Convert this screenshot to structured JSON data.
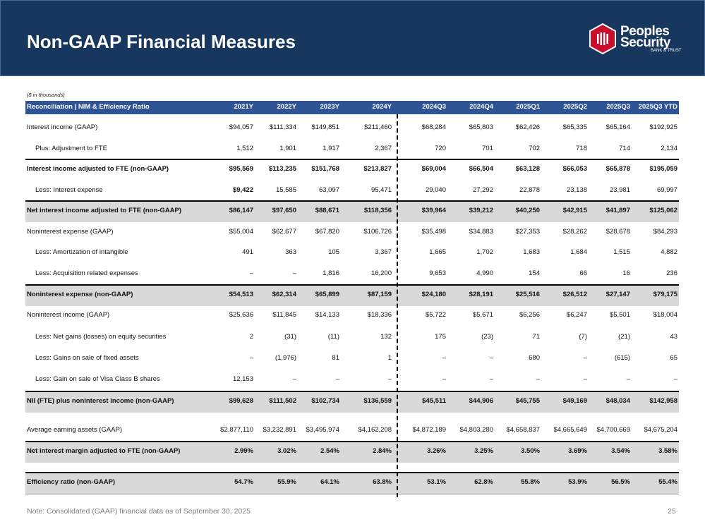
{
  "header": {
    "title": "Non-GAAP Financial Measures",
    "logo": {
      "line1": "Peoples",
      "line2": "Security",
      "line3": "BANK & TRUST"
    }
  },
  "units_note": "($ in thousands)",
  "table": {
    "columns": [
      "Reconciliation | NIM & Efficiency Ratio",
      "2021Y",
      "2022Y",
      "2023Y",
      "2024Y",
      "2024Q3",
      "2024Q4",
      "2025Q1",
      "2025Q2",
      "2025Q3",
      "2025Q3 YTD"
    ],
    "rows": [
      {
        "label": "Interest income (GAAP)",
        "cells": [
          "$94,057",
          "$111,334",
          "$149,851",
          "$211,460",
          "$68,284",
          "$65,803",
          "$62,426",
          "$65,335",
          "$65,164",
          "$192,925"
        ]
      },
      {
        "label": "Plus: Adjustment to FTE",
        "cells": [
          "1,512",
          "1,901",
          "1,917",
          "2,367",
          "720",
          "701",
          "702",
          "718",
          "714",
          "2,134"
        ]
      },
      {
        "label": "Interest income adjusted to FTE (non-GAAP)",
        "cells": [
          "$95,569",
          "$113,235",
          "$151,768",
          "$213,827",
          "$69,004",
          "$66,504",
          "$63,128",
          "$66,053",
          "$65,878",
          "$195,059"
        ]
      },
      {
        "label": "Less: Interest expense",
        "cells": [
          "$9,422",
          "15,585",
          "63,097",
          "95,471",
          "29,040",
          "27,292",
          "22,878",
          "23,138",
          "23,981",
          "69,997"
        ]
      },
      {
        "label": "Net interest income adjusted to FTE (non-GAAP)",
        "cells": [
          "$86,147",
          "$97,650",
          "$88,671",
          "$118,356",
          "$39,964",
          "$39,212",
          "$40,250",
          "$42,915",
          "$41,897",
          "$125,062"
        ]
      },
      {
        "label": "Noninterest expense (GAAP)",
        "cells": [
          "$55,004",
          "$62,677",
          "$67,820",
          "$106,726",
          "$35,498",
          "$34,883",
          "$27,353",
          "$28,262",
          "$28,678",
          "$84,293"
        ]
      },
      {
        "label": "Less: Amortization of intangible",
        "cells": [
          "491",
          "363",
          "105",
          "3,367",
          "1,665",
          "1,702",
          "1,683",
          "1,684",
          "1,515",
          "4,882"
        ]
      },
      {
        "label": "Less: Acquisition related expenses",
        "cells": [
          "–",
          "–",
          "1,816",
          "16,200",
          "9,653",
          "4,990",
          "154",
          "66",
          "16",
          "236"
        ]
      },
      {
        "label": "Noninterest expense (non-GAAP)",
        "cells": [
          "$54,513",
          "$62,314",
          "$65,899",
          "$87,159",
          "$24,180",
          "$28,191",
          "$25,516",
          "$26,512",
          "$27,147",
          "$79,175"
        ]
      },
      {
        "label": "Noninterest income (GAAP)",
        "cells": [
          "$25,636",
          "$11,845",
          "$14,133",
          "$18,336",
          "$5,722",
          "$5,671",
          "$6,256",
          "$6,247",
          "$5,501",
          "$18,004"
        ]
      },
      {
        "label": "Less: Net gains (losses) on equity securities",
        "cells": [
          "2",
          "(31)",
          "(11)",
          "132",
          "175",
          "(23)",
          "71",
          "(7)",
          "(21)",
          "43"
        ]
      },
      {
        "label": "Less: Gains on sale of fixed assets",
        "cells": [
          "–",
          "(1,976)",
          "81",
          "1",
          "–",
          "–",
          "680",
          "–",
          "(615)",
          "65"
        ]
      },
      {
        "label": "Less: Gain on sale of Visa Class B shares",
        "cells": [
          "12,153",
          "–",
          "–",
          "–",
          "–",
          "–",
          "–",
          "–",
          "–",
          "–"
        ]
      },
      {
        "label": "NII (FTE) plus noninterest income (non-GAAP)",
        "cells": [
          "$99,628",
          "$111,502",
          "$102,734",
          "$136,559",
          "$45,511",
          "$44,906",
          "$45,755",
          "$49,169",
          "$48,034",
          "$142,958"
        ]
      },
      {
        "label": "Average earning assets (GAAP)",
        "cells": [
          "$2,877,110",
          "$3,232,891",
          "$3,495,974",
          "$4,162,208",
          "$4,872,189",
          "$4,803,280",
          "$4,658,837",
          "$4,665,649",
          "$4,700,669",
          "$4,675,204"
        ]
      },
      {
        "label": "Net interest margin adjusted to FTE (non-GAAP)",
        "cells": [
          "2.99%",
          "3.02%",
          "2.54%",
          "2.84%",
          "3.26%",
          "3.25%",
          "3.50%",
          "3.69%",
          "3.54%",
          "3.58%"
        ]
      },
      {
        "label": "Efficiency ratio (non-GAAP)",
        "cells": [
          "54.7%",
          "55.9%",
          "64.1%",
          "63.8%",
          "53.1%",
          "62.8%",
          "55.8%",
          "53.9%",
          "56.5%",
          "55.4%"
        ]
      }
    ]
  },
  "footer": {
    "note": "Note: Consolidated (GAAP) financial data as of September 30, 2025",
    "page": "25"
  }
}
